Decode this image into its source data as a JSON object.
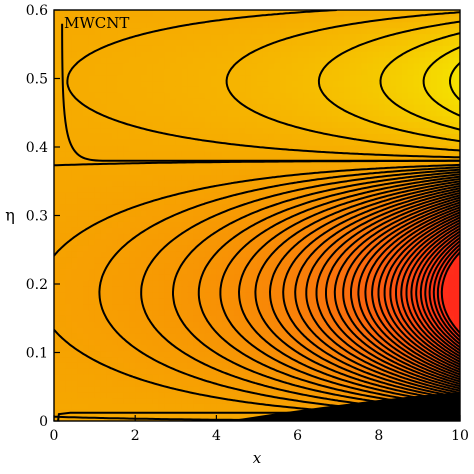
{
  "chart_data": {
    "type": "contour",
    "xlabel": "x",
    "ylabel": "η",
    "xlim": [
      0,
      10
    ],
    "ylim": [
      0,
      0.6
    ],
    "xticks": [
      0,
      2,
      4,
      6,
      8,
      10
    ],
    "yticks": [
      0,
      0.1,
      0.2,
      0.3,
      0.4,
      0.5,
      0.6
    ],
    "xtick_labels": [
      "0",
      "2",
      "4",
      "6",
      "8",
      "10"
    ],
    "ytick_labels": [
      "0",
      "0.1",
      "0.2",
      "0.3",
      "0.4",
      "0.5",
      "0.6"
    ],
    "annotation": "MWCNT",
    "grid": false,
    "colorscale": [
      "#f6a800",
      "#f7c400",
      "#f5e200",
      "#ff2a1a"
    ],
    "features": {
      "lower_cell_center": [
        10,
        0.13
      ],
      "upper_cell_center": [
        10,
        0.53
      ],
      "separatrix_eta": 0.38
    }
  }
}
